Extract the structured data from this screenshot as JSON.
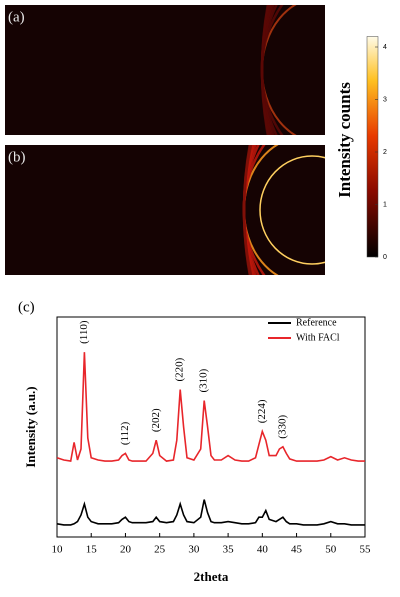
{
  "panel_labels": [
    "(a)",
    "(b)",
    "(c)"
  ],
  "chart_data": [
    {
      "type": "colorbar",
      "label": "Intensity counts",
      "ylim": [
        0,
        4.2
      ],
      "yticks": [
        0,
        1,
        2,
        3,
        4
      ]
    },
    {
      "type": "line",
      "x_label": "2theta",
      "y_label": "Intensity (a.u.)",
      "xlim": [
        10,
        55
      ],
      "xticks": [
        10,
        15,
        20,
        25,
        30,
        35,
        40,
        45,
        50,
        55
      ],
      "ylim": [
        0,
        100
      ],
      "legend": "upper right",
      "x": [
        10,
        11,
        12,
        12.5,
        13,
        13.5,
        14,
        14.5,
        15,
        16,
        17,
        18,
        19,
        19.5,
        20,
        20.5,
        21,
        22,
        23,
        24,
        24.5,
        25,
        26,
        27,
        27.5,
        28,
        28.5,
        29,
        30,
        31,
        31.5,
        32,
        32.5,
        33,
        34,
        35,
        36,
        37,
        38,
        39,
        39.5,
        40,
        40.5,
        41,
        42,
        42.5,
        43,
        43.5,
        44,
        45,
        46,
        47,
        48,
        49,
        50,
        51,
        52,
        53,
        54,
        55
      ],
      "series": [
        {
          "name": "Reference",
          "color": "#000000",
          "values": [
            6,
            5.5,
            5.5,
            6,
            7,
            10,
            15,
            9,
            7,
            6,
            6,
            6,
            6.5,
            8,
            9,
            7,
            6.5,
            6.5,
            6.5,
            7,
            9,
            7,
            6.5,
            7,
            10,
            15,
            10,
            7,
            6.5,
            9,
            17,
            11,
            7,
            6.5,
            6.5,
            7,
            6.5,
            6,
            6,
            6.5,
            9,
            9,
            12,
            8,
            7,
            8,
            9,
            7,
            6,
            6,
            5.5,
            5.5,
            5.5,
            6,
            7,
            6,
            6,
            5.5,
            5.5,
            5.5
          ]
        },
        {
          "name": "With FACl",
          "color": "#e8262b",
          "values": [
            36,
            35,
            34.5,
            43,
            35,
            40,
            84,
            45,
            36,
            35,
            34.5,
            34.5,
            35,
            37,
            38,
            35,
            34.5,
            34.5,
            34.5,
            38,
            44,
            37,
            34.5,
            35,
            44,
            67,
            50,
            36,
            35,
            40,
            62,
            50,
            37,
            35,
            35,
            37,
            35,
            34.5,
            34.5,
            36,
            42,
            48,
            44,
            37,
            37,
            40,
            41,
            38,
            35.5,
            34.5,
            34.5,
            34.5,
            34.5,
            35,
            36.5,
            35,
            36,
            35,
            34.5,
            34.5
          ]
        }
      ],
      "annotations": [
        {
          "text": "(110)",
          "x": 14
        },
        {
          "text": "(112)",
          "x": 20
        },
        {
          "text": "(202)",
          "x": 24.5
        },
        {
          "text": "(220)",
          "x": 28
        },
        {
          "text": "(310)",
          "x": 31.5
        },
        {
          "text": "(224)",
          "x": 40
        },
        {
          "text": "(330)",
          "x": 43
        }
      ]
    }
  ]
}
